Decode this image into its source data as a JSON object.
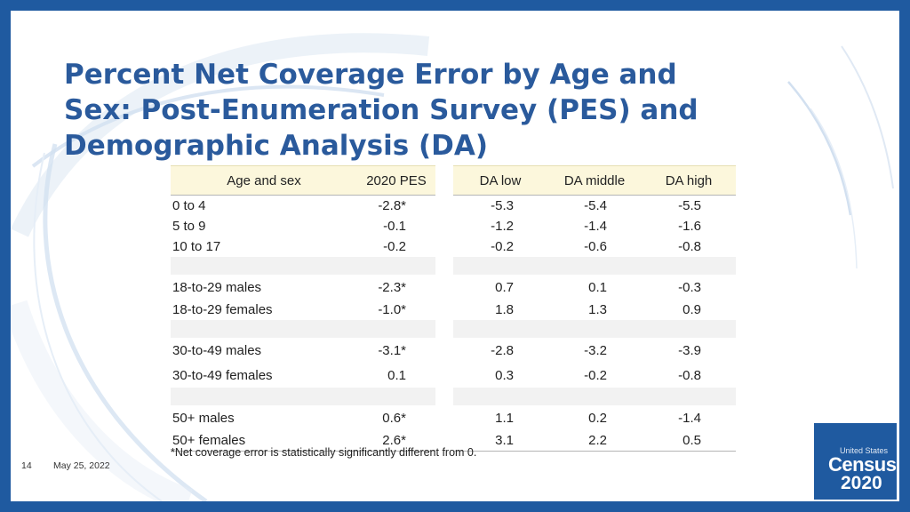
{
  "title_lines": [
    "Percent Net Coverage Error by Age and",
    "Sex: Post-Enumeration Survey (PES) and",
    "Demographic Analysis (DA)"
  ],
  "table": {
    "headers": {
      "age": "Age and sex",
      "pes": "2020 PES",
      "da_low": "DA low",
      "da_middle": "DA middle",
      "da_high": "DA high"
    },
    "rows": [
      {
        "age": "0 to 4",
        "pes": "-2.8*",
        "da_low": "-5.3",
        "da_middle": "-5.4",
        "da_high": "-5.5"
      },
      {
        "age": "5 to 9",
        "pes": "-0.1",
        "da_low": "-1.2",
        "da_middle": "-1.4",
        "da_high": "-1.6"
      },
      {
        "age": "10 to 17",
        "pes": "-0.2",
        "da_low": "-0.2",
        "da_middle": "-0.6",
        "da_high": "-0.8"
      },
      {
        "age": "18-to-29 males",
        "pes": "-2.3*",
        "da_low": "0.7",
        "da_middle": "0.1",
        "da_high": "-0.3"
      },
      {
        "age": "18-to-29 females",
        "pes": "-1.0*",
        "da_low": "1.8",
        "da_middle": "1.3",
        "da_high": "0.9"
      },
      {
        "age": "30-to-49 males",
        "pes": "-3.1*",
        "da_low": "-2.8",
        "da_middle": "-3.2",
        "da_high": "-3.9"
      },
      {
        "age": "30-to-49 females",
        "pes": "0.1",
        "da_low": "0.3",
        "da_middle": "-0.2",
        "da_high": "-0.8"
      },
      {
        "age": "50+ males",
        "pes": "0.6*",
        "da_low": "1.1",
        "da_middle": "0.2",
        "da_high": "-1.4"
      },
      {
        "age": "50+ females",
        "pes": "2.6*",
        "da_low": "3.1",
        "da_middle": "2.2",
        "da_high": "0.5"
      }
    ]
  },
  "footnote": "*Net coverage error is statistically significantly different from 0.",
  "footer": {
    "page_number": "14",
    "date": "May 25, 2022"
  },
  "logo": {
    "united_states": "United States",
    "census": "Census",
    "year": "2020"
  },
  "colors": {
    "frame": "#1f5aa0",
    "title": "#2a5a9c",
    "header_fill": "#fcf7dc",
    "separator_fill": "#f2f2f2"
  }
}
